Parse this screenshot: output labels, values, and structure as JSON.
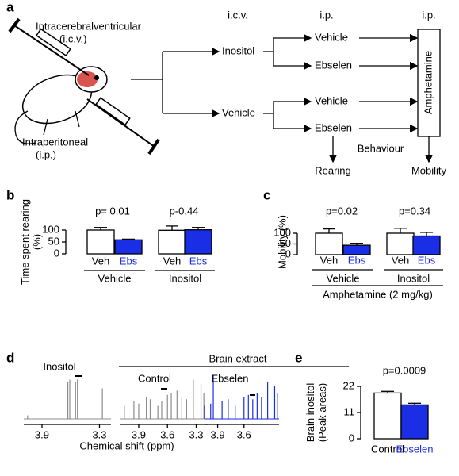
{
  "diagram": {
    "panel_label": "a",
    "icv_route": [
      "Intracerebralventricular",
      "(i.c.v.)"
    ],
    "ip_route": [
      "Intraperitoneal",
      "(i.p.)"
    ],
    "column_headers": [
      "i.c.v.",
      "i.p.",
      "i.p."
    ],
    "nodes": [
      "Inositol",
      "Vehicle",
      "Vehicle",
      "Ebselen",
      "Vehicle",
      "Ebselen",
      "Amphetamine",
      "Rearing",
      "Mobility",
      "Behaviour"
    ]
  },
  "panel_labels": [
    "b",
    "c",
    "d",
    "e"
  ],
  "brain_extract": "Brain extract",
  "chart_data": [
    {
      "type": "bar",
      "ylabel": [
        "Time spent rearing",
        "(%)"
      ],
      "categories": [
        "Veh",
        "Ebs",
        "Veh",
        "Ebs"
      ],
      "groups": [
        "Vehicle",
        "Inositol"
      ],
      "values": [
        100,
        59,
        99,
        101
      ],
      "errors": [
        11,
        3,
        18,
        10
      ],
      "colors": [
        "#ffffff",
        "#1a2ee6",
        "#ffffff",
        "#1a2ee6"
      ],
      "label_colors": [
        "#000000",
        "#1a2ee6",
        "#000000",
        "#1a2ee6"
      ],
      "annotations": [
        "p= 0.01",
        "p-0.44"
      ],
      "ylim": [
        0,
        100
      ],
      "yticks": [
        0,
        50,
        100
      ]
    },
    {
      "type": "bar",
      "ylabel": [
        "Mobility (%)"
      ],
      "categories": [
        "Veh",
        "Ebs",
        "Veh",
        "Ebs"
      ],
      "groups": [
        "Vehicle",
        "Inositol"
      ],
      "values": [
        100,
        44,
        100,
        87
      ],
      "errors": [
        20,
        9,
        23,
        17
      ],
      "colors": [
        "#ffffff",
        "#1a2ee6",
        "#ffffff",
        "#1a2ee6"
      ],
      "label_colors": [
        "#000000",
        "#1a2ee6",
        "#000000",
        "#1a2ee6"
      ],
      "annotations": [
        "p=0.02",
        "p=0.34"
      ],
      "xlabel": "Amphetamine (2 mg/kg)",
      "ylim": [
        0,
        100
      ],
      "yticks": [
        0,
        50,
        100
      ]
    },
    {
      "type": "spectrum",
      "title": "Inositol",
      "color": "#8c8c8c",
      "x": [
        4.05,
        3.63,
        3.61,
        3.55,
        3.53,
        3.27
      ],
      "values": [
        0.08,
        0.85,
        0.9,
        0.85,
        0.9,
        0.7
      ],
      "xlim": [
        4.09,
        3.18
      ],
      "xticks": [
        3.9,
        3.3
      ]
    },
    {
      "type": "spectrum",
      "title": "Control",
      "color": "#8c8c8c",
      "xlabel": "Chemical shift (ppm)",
      "x": [
        4.05,
        3.95,
        3.9,
        3.82,
        3.78,
        3.7,
        3.66,
        3.6,
        3.56,
        3.5,
        3.45,
        3.4,
        3.33,
        3.25,
        3.22
      ],
      "values": [
        0.3,
        0.4,
        0.35,
        0.5,
        0.45,
        0.3,
        0.4,
        0.55,
        0.6,
        0.65,
        0.5,
        0.45,
        0.9,
        0.8,
        0.6
      ],
      "xlim": [
        4.09,
        3.18
      ],
      "xticks": [
        3.9,
        3.6,
        3.3
      ]
    },
    {
      "type": "spectrum",
      "title": "Ebselen",
      "color": "#1a2ee6",
      "x": [
        4.05,
        3.98,
        3.95,
        3.85,
        3.78,
        3.7,
        3.6,
        3.55,
        3.5,
        3.45,
        3.4,
        3.33,
        3.25,
        3.22
      ],
      "values": [
        0.3,
        0.35,
        1.0,
        0.4,
        0.45,
        0.3,
        0.5,
        0.55,
        0.45,
        0.6,
        0.5,
        0.85,
        0.75,
        0.6
      ],
      "xlim": [
        4.05,
        3.2
      ],
      "xticks": [
        3.9,
        3.6
      ]
    },
    {
      "type": "bar",
      "ylabel": [
        "Brain inositol",
        "(Peak areas)"
      ],
      "categories": [
        "Control",
        "Ebselen"
      ],
      "values": [
        19.2,
        14.2
      ],
      "errors": [
        0.7,
        0.7
      ],
      "colors": [
        "#ffffff",
        "#1a2ee6"
      ],
      "label_colors": [
        "#000000",
        "#1a2ee6"
      ],
      "annotations": [
        "p=0.0009"
      ],
      "ylim": [
        0,
        22
      ],
      "yticks": [
        0,
        11,
        22
      ]
    }
  ]
}
